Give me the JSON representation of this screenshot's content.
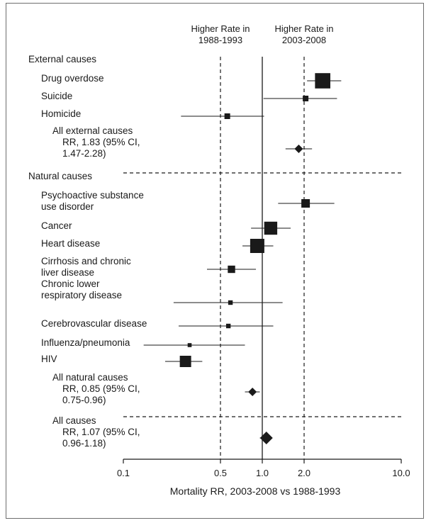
{
  "chart_data": {
    "type": "forest",
    "xlabel": "Mortality RR, 2003-2008 vs 1988-1993",
    "x_scale": "log",
    "xlim": [
      0.1,
      10.0
    ],
    "ticks": [
      {
        "value": 0.1,
        "label": "0.1"
      },
      {
        "value": 0.5,
        "label": "0.5"
      },
      {
        "value": 1.0,
        "label": "1.0"
      },
      {
        "value": 2.0,
        "label": "2.0"
      },
      {
        "value": 10.0,
        "label": "10.0"
      }
    ],
    "reference_lines": [
      {
        "value": 0.5,
        "style": "dashed",
        "label": [
          "Higher Rate in",
          "1988-1993"
        ]
      },
      {
        "value": 1.0,
        "style": "solid"
      },
      {
        "value": 2.0,
        "style": "dashed",
        "label": [
          "Higher Rate in",
          "2003-2008"
        ]
      }
    ],
    "rows": [
      {
        "kind": "header",
        "label": [
          "External causes"
        ]
      },
      {
        "kind": "study",
        "label": [
          "Drug overdose"
        ],
        "rr": 2.72,
        "lo": 2.1,
        "hi": 3.7,
        "weight": 11
      },
      {
        "kind": "study",
        "label": [
          "Suicide"
        ],
        "rr": 2.05,
        "lo": 1.02,
        "hi": 3.45,
        "weight": 2.5
      },
      {
        "kind": "study",
        "label": [
          "Homicide"
        ],
        "rr": 0.56,
        "lo": 0.26,
        "hi": 1.03,
        "weight": 2.5
      },
      {
        "kind": "summary",
        "label": [
          "All external causes",
          "RR, 1.83 (95% CI,",
          "1.47-2.28)"
        ],
        "rr": 1.83,
        "lo": 1.47,
        "hi": 2.28
      },
      {
        "kind": "separator"
      },
      {
        "kind": "header",
        "label": [
          "Natural causes"
        ]
      },
      {
        "kind": "study",
        "label": [
          "Psychoactive substance",
          "use disorder"
        ],
        "rr": 2.05,
        "lo": 1.3,
        "hi": 3.3,
        "weight": 5
      },
      {
        "kind": "study",
        "label": [
          "Cancer"
        ],
        "rr": 1.15,
        "lo": 0.83,
        "hi": 1.6,
        "weight": 9
      },
      {
        "kind": "study",
        "label": [
          "Heart disease"
        ],
        "rr": 0.92,
        "lo": 0.72,
        "hi": 1.2,
        "weight": 10
      },
      {
        "kind": "study",
        "label": [
          "Cirrhosis and chronic",
          "liver disease"
        ],
        "rr": 0.6,
        "lo": 0.4,
        "hi": 0.9,
        "weight": 4
      },
      {
        "kind": "study",
        "label": [
          "Chronic lower",
          "respiratory disease"
        ],
        "rr": 0.59,
        "lo": 0.23,
        "hi": 1.4,
        "weight": 1.5
      },
      {
        "kind": "study",
        "label": [
          "Cerebrovascular disease"
        ],
        "rr": 0.57,
        "lo": 0.25,
        "hi": 1.2,
        "weight": 1.5
      },
      {
        "kind": "study",
        "label": [
          "Influenza/pneumonia"
        ],
        "rr": 0.3,
        "lo": 0.14,
        "hi": 0.75,
        "weight": 1
      },
      {
        "kind": "study",
        "label": [
          "HIV"
        ],
        "rr": 0.28,
        "lo": 0.2,
        "hi": 0.37,
        "weight": 7.5
      },
      {
        "kind": "summary",
        "label": [
          "All natural causes",
          "RR, 0.85 (95% CI,",
          "0.75-0.96)"
        ],
        "rr": 0.85,
        "lo": 0.75,
        "hi": 0.96
      },
      {
        "kind": "separator"
      },
      {
        "kind": "summary_all",
        "label": [
          "All causes",
          "RR, 1.07 (95% CI,",
          "0.96-1.18)"
        ],
        "rr": 1.07,
        "lo": 0.96,
        "hi": 1.18
      }
    ]
  }
}
